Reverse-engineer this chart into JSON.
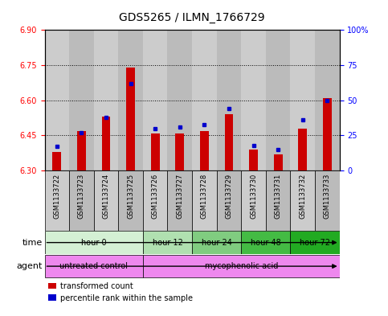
{
  "title": "GDS5265 / ILMN_1766729",
  "samples": [
    "GSM1133722",
    "GSM1133723",
    "GSM1133724",
    "GSM1133725",
    "GSM1133726",
    "GSM1133727",
    "GSM1133728",
    "GSM1133729",
    "GSM1133730",
    "GSM1133731",
    "GSM1133732",
    "GSM1133733"
  ],
  "transformed_count": [
    6.38,
    6.47,
    6.53,
    6.74,
    6.46,
    6.46,
    6.47,
    6.54,
    6.39,
    6.37,
    6.48,
    6.61
  ],
  "percentile_rank": [
    17,
    27,
    38,
    62,
    30,
    31,
    33,
    44,
    18,
    15,
    36,
    50
  ],
  "bar_bottom": 6.3,
  "ylim": [
    6.3,
    6.9
  ],
  "y2lim": [
    0,
    100
  ],
  "y_ticks": [
    6.3,
    6.45,
    6.6,
    6.75,
    6.9
  ],
  "y2_ticks": [
    0,
    25,
    50,
    75,
    100
  ],
  "y2_labels": [
    "0",
    "25",
    "50",
    "75",
    "100%"
  ],
  "time_groups": [
    {
      "label": "hour 0",
      "start": 0,
      "end": 3,
      "color": "#d4f0d4"
    },
    {
      "label": "hour 12",
      "start": 4,
      "end": 5,
      "color": "#b0e0b0"
    },
    {
      "label": "hour 24",
      "start": 6,
      "end": 7,
      "color": "#80cc80"
    },
    {
      "label": "hour 48",
      "start": 8,
      "end": 9,
      "color": "#44bb44"
    },
    {
      "label": "hour 72",
      "start": 10,
      "end": 11,
      "color": "#22aa22"
    }
  ],
  "agent_groups": [
    {
      "label": "untreated control",
      "start": 0,
      "end": 3,
      "color": "#ee88ee"
    },
    {
      "label": "mycophenolic acid",
      "start": 4,
      "end": 11,
      "color": "#ee88ee"
    }
  ],
  "bar_color": "#cc0000",
  "percentile_color": "#0000cc",
  "col_bg_even": "#cccccc",
  "col_bg_odd": "#bbbbbb",
  "title_fontsize": 10,
  "tick_fontsize": 7,
  "sample_fontsize": 6
}
